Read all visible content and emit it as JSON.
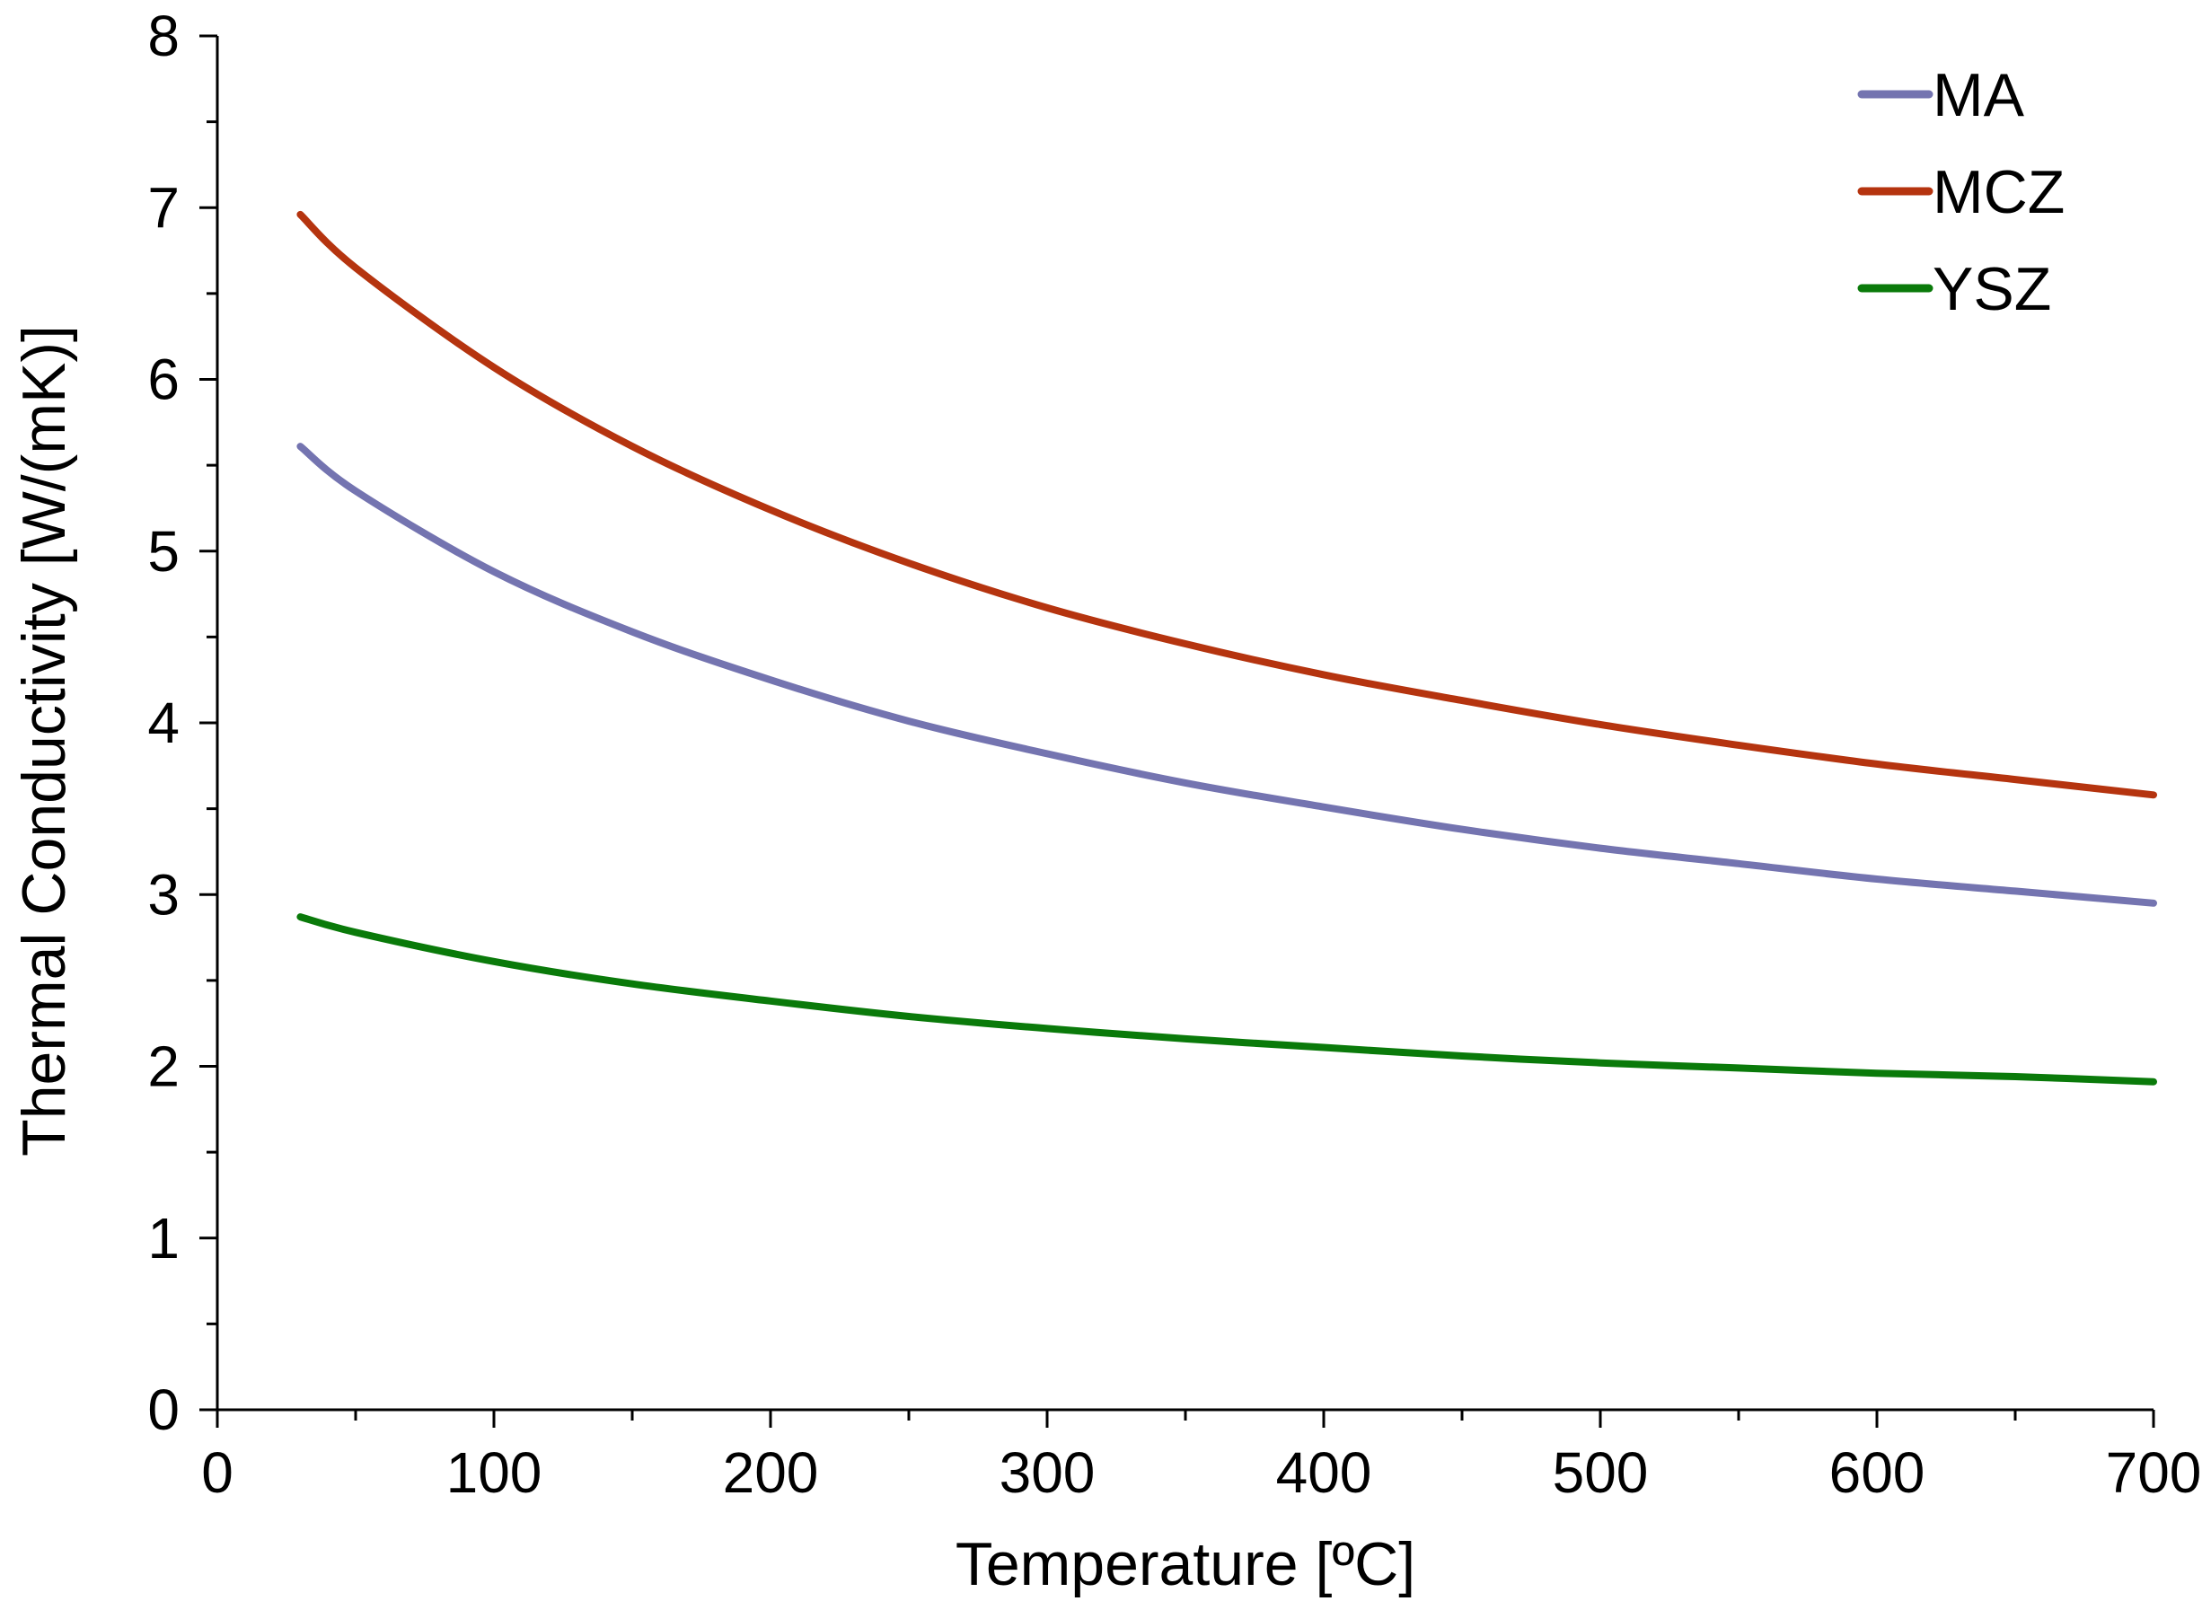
{
  "chart_data": {
    "type": "line",
    "title": "",
    "xlabel": "Temperature [ºC]",
    "ylabel": "Thermal Conductivity  [W/(mK)]",
    "xlim": [
      0,
      700
    ],
    "ylim": [
      0,
      8
    ],
    "xticks": [
      0,
      100,
      200,
      300,
      400,
      500,
      600,
      700
    ],
    "yticks": [
      0,
      1,
      2,
      3,
      4,
      5,
      6,
      7,
      8
    ],
    "grid": false,
    "legend_position": "top-right",
    "series": [
      {
        "name": "MA",
        "color": "#7474b0",
        "x": [
          30,
          50,
          100,
          150,
          200,
          250,
          300,
          350,
          400,
          450,
          500,
          550,
          600,
          650,
          700
        ],
        "y": [
          5.61,
          5.35,
          4.88,
          4.53,
          4.25,
          4.01,
          3.82,
          3.65,
          3.51,
          3.38,
          3.27,
          3.18,
          3.09,
          3.02,
          2.95
        ]
      },
      {
        "name": "MCZ",
        "color": "#b5340f",
        "x": [
          30,
          50,
          100,
          150,
          200,
          250,
          300,
          350,
          400,
          450,
          500,
          550,
          600,
          650,
          700
        ],
        "y": [
          6.96,
          6.65,
          6.07,
          5.61,
          5.24,
          4.93,
          4.67,
          4.46,
          4.28,
          4.13,
          3.99,
          3.87,
          3.76,
          3.67,
          3.58
        ]
      },
      {
        "name": "YSZ",
        "color": "#0a7a0a",
        "x": [
          30,
          50,
          100,
          150,
          200,
          250,
          300,
          350,
          400,
          450,
          500,
          550,
          600,
          650,
          700
        ],
        "y": [
          2.87,
          2.78,
          2.61,
          2.48,
          2.38,
          2.29,
          2.22,
          2.16,
          2.11,
          2.06,
          2.02,
          1.99,
          1.96,
          1.94,
          1.91
        ]
      }
    ]
  }
}
